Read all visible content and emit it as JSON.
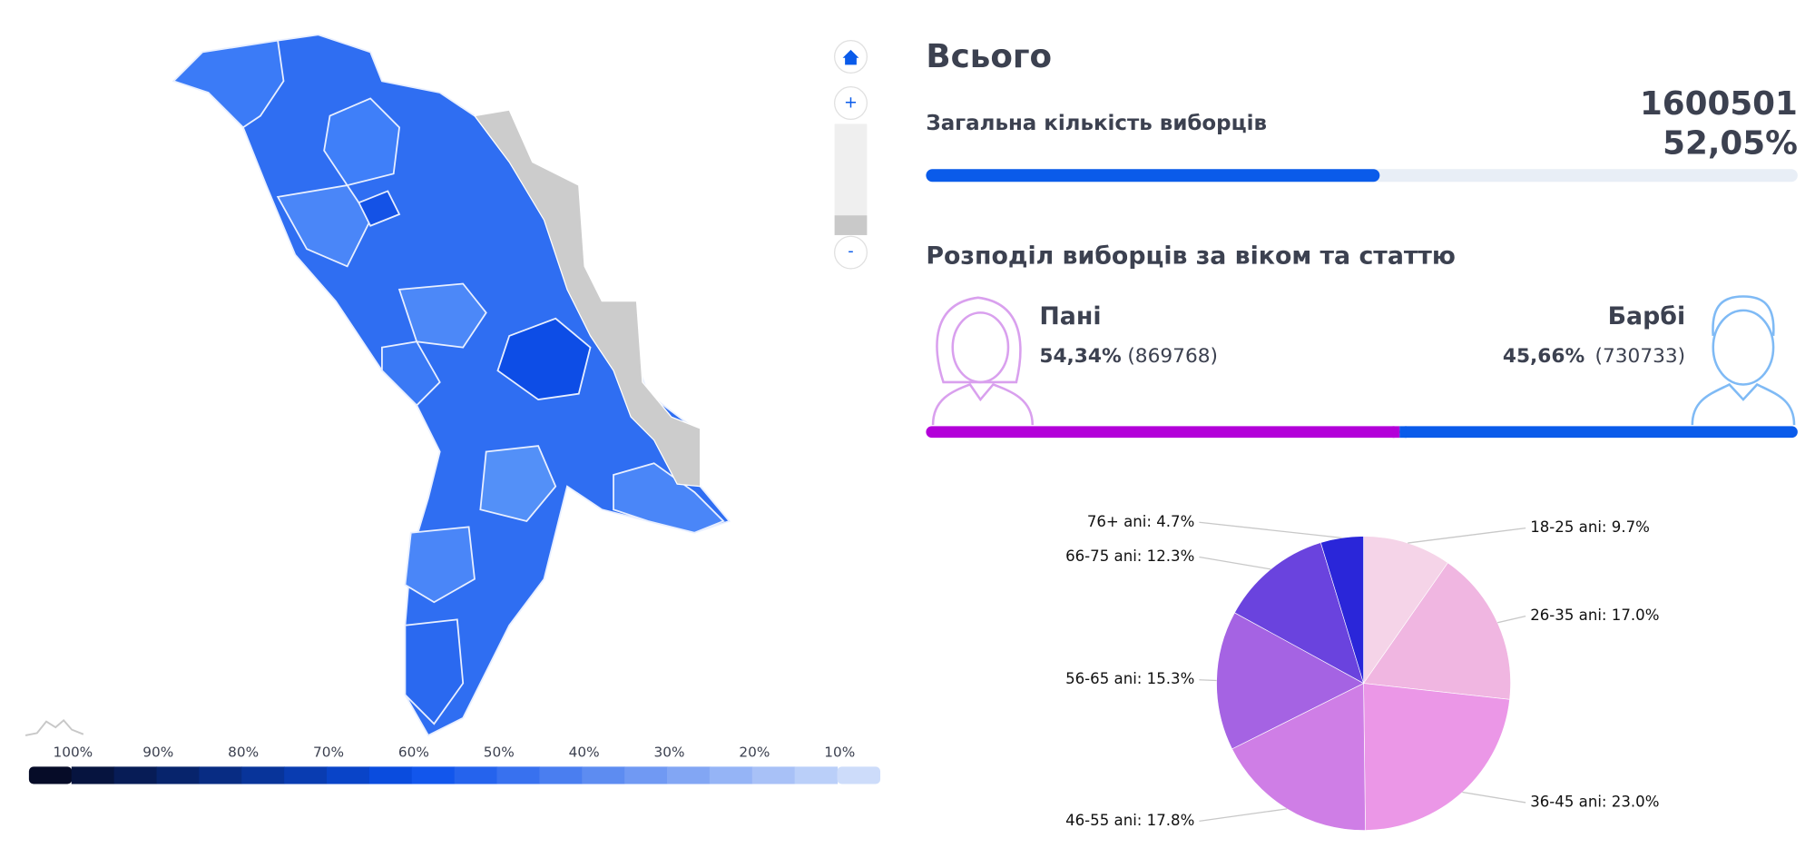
{
  "summary": {
    "title": "Всього",
    "label": "Загальна кількість виборців",
    "total": 1600501,
    "percent": 52.05,
    "percent_label": "52,05%",
    "color": "#0a5bea"
  },
  "gender": {
    "title": "Розподіл виборців за віком та статтю",
    "women": {
      "name": "Пані",
      "percent": 54.34,
      "percent_label": "54,34%",
      "count": "(869768)",
      "color": "#b300d9"
    },
    "men": {
      "name": "Барбі",
      "percent": 45.66,
      "percent_label": "45,66%",
      "count": "(730733)",
      "color": "#0a5bea"
    }
  },
  "chart_data": {
    "type": "pie",
    "values": [
      9.7,
      17.0,
      23.0,
      17.8,
      15.3,
      12.3,
      4.7
    ],
    "value_labels": [
      "18-25 ani: 9.7%",
      "26-35 ani: 17.0%",
      "36-45 ani: 23.0%",
      "46-55 ani: 17.8%",
      "56-65 ani: 15.3%",
      "66-75 ani: 12.3%",
      "76+ ani: 4.7%"
    ],
    "colors": [
      "#f5d4e8",
      "#f0b6e1",
      "#eb97e7",
      "#cf7ee6",
      "#a563e3",
      "#6a43de",
      "#2a26d9"
    ]
  },
  "map_legend": {
    "labels": [
      "100%",
      "90%",
      "80%",
      "70%",
      "60%",
      "50%",
      "40%",
      "30%",
      "20%",
      "10%"
    ]
  },
  "controls": {
    "zoom_in": "+",
    "zoom_out": "-"
  }
}
